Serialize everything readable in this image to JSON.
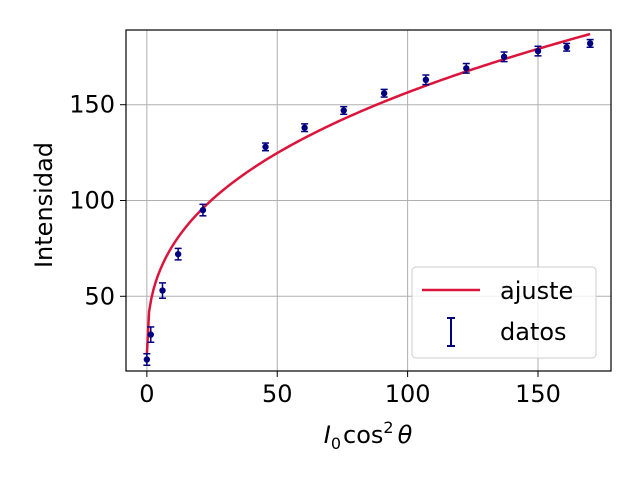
{
  "chart_data": {
    "type": "scatter",
    "ylabel": "Intensidad",
    "xlabel": {
      "base": "I",
      "sub": "0",
      "func": "cos",
      "sup": "2",
      "var": "θ"
    },
    "xlim": [
      -8,
      178
    ],
    "ylim": [
      11,
      189
    ],
    "xticks": [
      0,
      50,
      100,
      150
    ],
    "yticks": [
      50,
      100,
      150
    ],
    "grid": true,
    "legend_position": "lower-right",
    "colors": {
      "fit": "#dc143c",
      "data": "#000080",
      "grid": "#b0b0b0"
    },
    "series": [
      {
        "name": "datos",
        "kind": "errorbar",
        "x": [
          0,
          1.5,
          6,
          12,
          21.5,
          45.5,
          60.5,
          75.5,
          91,
          107,
          122.5,
          137,
          150,
          161,
          170
        ],
        "y": [
          17,
          30,
          53,
          72,
          95,
          128,
          138,
          147,
          156,
          163,
          169,
          175,
          178,
          180,
          182
        ],
        "yerr": [
          3,
          4,
          4,
          3,
          3,
          2,
          2,
          2,
          2,
          2.5,
          2.5,
          2.5,
          2.5,
          2,
          2
        ]
      },
      {
        "name": "ajuste",
        "kind": "curve",
        "function": "power",
        "x_range": [
          0,
          170
        ],
        "params": {
          "a": 19.5,
          "b": 23.9,
          "n": 0.379
        }
      }
    ],
    "legend": [
      {
        "label": "ajuste",
        "marker": "line"
      },
      {
        "label": "datos",
        "marker": "errorbar"
      }
    ]
  }
}
